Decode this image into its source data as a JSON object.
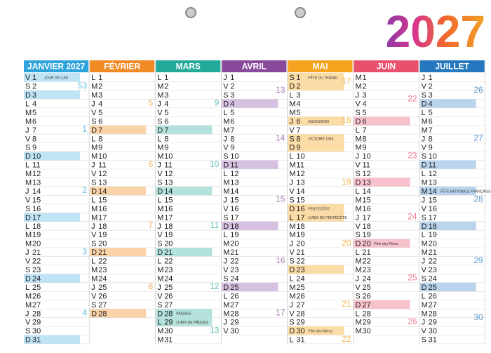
{
  "title": "2027",
  "months": [
    {
      "name": "JANVIER 2027",
      "color": "#2fa4dc",
      "light": "#bfe4f6",
      "letters": [
        "V",
        "S",
        "D",
        "L",
        "M",
        "M",
        "J",
        "V",
        "S",
        "D",
        "L",
        "M",
        "M",
        "J",
        "V",
        "S",
        "D",
        "L",
        "M",
        "M",
        "J",
        "V",
        "S",
        "D",
        "L",
        "M",
        "M",
        "J",
        "V",
        "S",
        "D"
      ],
      "days": [
        1,
        2,
        3,
        4,
        5,
        6,
        7,
        8,
        9,
        10,
        11,
        12,
        13,
        14,
        15,
        16,
        17,
        18,
        19,
        20,
        21,
        22,
        23,
        24,
        25,
        26,
        27,
        28,
        29,
        30,
        31
      ],
      "weeks": [
        53,
        1,
        2,
        3,
        4
      ],
      "events": [
        {
          "day": 1,
          "label": "JOUR DE L'AN"
        }
      ]
    },
    {
      "name": "FÉVRIER",
      "color": "#f18a24",
      "light": "#fbd3a8",
      "letters": [
        "L",
        "M",
        "M",
        "J",
        "V",
        "S",
        "D",
        "L",
        "M",
        "M",
        "J",
        "V",
        "S",
        "D",
        "L",
        "M",
        "M",
        "J",
        "V",
        "S",
        "D",
        "L",
        "M",
        "M",
        "J",
        "V",
        "S",
        "D"
      ],
      "days": [
        1,
        2,
        3,
        4,
        5,
        6,
        7,
        8,
        9,
        10,
        11,
        12,
        13,
        14,
        15,
        16,
        17,
        18,
        19,
        20,
        21,
        22,
        23,
        24,
        25,
        26,
        27,
        28
      ],
      "weeks": [
        5,
        6,
        7,
        8
      ],
      "events": []
    },
    {
      "name": "MARS",
      "color": "#22a99a",
      "light": "#b4e2dc",
      "letters": [
        "L",
        "M",
        "M",
        "J",
        "V",
        "S",
        "D",
        "L",
        "M",
        "M",
        "J",
        "V",
        "S",
        "D",
        "L",
        "M",
        "M",
        "J",
        "V",
        "S",
        "D",
        "L",
        "M",
        "M",
        "J",
        "V",
        "S",
        "D",
        "L",
        "M",
        "M"
      ],
      "days": [
        1,
        2,
        3,
        4,
        5,
        6,
        7,
        8,
        9,
        10,
        11,
        12,
        13,
        14,
        15,
        16,
        17,
        18,
        19,
        20,
        21,
        22,
        23,
        24,
        25,
        26,
        27,
        28,
        29,
        30,
        31
      ],
      "weeks": [
        9,
        10,
        11,
        12,
        13
      ],
      "events": [
        {
          "day": 28,
          "label": "PÂQUES"
        },
        {
          "day": 29,
          "label": "LUNDI DE PÂQUES"
        }
      ]
    },
    {
      "name": "AVRIL",
      "color": "#8a4a9c",
      "light": "#d7c1e0",
      "letters": [
        "J",
        "V",
        "S",
        "D",
        "L",
        "M",
        "M",
        "J",
        "V",
        "S",
        "D",
        "L",
        "M",
        "M",
        "J",
        "V",
        "S",
        "D",
        "L",
        "M",
        "M",
        "J",
        "V",
        "S",
        "D",
        "L",
        "M",
        "M",
        "J",
        "V"
      ],
      "days": [
        1,
        2,
        3,
        4,
        5,
        6,
        7,
        8,
        9,
        10,
        11,
        12,
        13,
        14,
        15,
        16,
        17,
        18,
        19,
        20,
        21,
        22,
        23,
        24,
        25,
        26,
        27,
        28,
        29,
        30
      ],
      "weeks": [
        13,
        14,
        15,
        16,
        17
      ],
      "events": []
    },
    {
      "name": "MAI",
      "color": "#f5a21e",
      "light": "#fcdca6",
      "letters": [
        "S",
        "D",
        "L",
        "M",
        "M",
        "J",
        "V",
        "S",
        "D",
        "L",
        "M",
        "M",
        "J",
        "V",
        "S",
        "D",
        "L",
        "M",
        "M",
        "J",
        "V",
        "S",
        "D",
        "L",
        "M",
        "M",
        "J",
        "V",
        "S",
        "D",
        "L"
      ],
      "days": [
        1,
        2,
        3,
        4,
        5,
        6,
        7,
        8,
        9,
        10,
        11,
        12,
        13,
        14,
        15,
        16,
        17,
        18,
        19,
        20,
        21,
        22,
        23,
        24,
        25,
        26,
        27,
        28,
        29,
        30,
        31
      ],
      "weeks": [
        17,
        18,
        19,
        20,
        21,
        22
      ],
      "events": [
        {
          "day": 1,
          "label": "FÊTE DU TRAVAIL"
        },
        {
          "day": 6,
          "label": "ASCENSION"
        },
        {
          "day": 8,
          "label": "VICTOIRE 1945"
        },
        {
          "day": 16,
          "label": "PENTECÔTE"
        },
        {
          "day": 17,
          "label": "LUNDI DE PENTECÔTE"
        },
        {
          "day": 30,
          "label": "Fête des Mères"
        }
      ]
    },
    {
      "name": "JUIN",
      "color": "#e8506e",
      "light": "#f8c2cd",
      "letters": [
        "M",
        "M",
        "J",
        "V",
        "S",
        "D",
        "L",
        "M",
        "M",
        "J",
        "V",
        "S",
        "D",
        "L",
        "M",
        "M",
        "J",
        "V",
        "S",
        "D",
        "L",
        "M",
        "M",
        "J",
        "V",
        "S",
        "D",
        "L",
        "M",
        "M"
      ],
      "days": [
        1,
        2,
        3,
        4,
        5,
        6,
        7,
        8,
        9,
        10,
        11,
        12,
        13,
        14,
        15,
        16,
        17,
        18,
        19,
        20,
        21,
        22,
        23,
        24,
        25,
        26,
        27,
        28,
        29,
        30
      ],
      "weeks": [
        22,
        23,
        24,
        25,
        26
      ],
      "events": [
        {
          "day": 20,
          "label": "Fête des Pères"
        }
      ]
    },
    {
      "name": "JUILLET",
      "color": "#2578bd",
      "light": "#b9d4ec",
      "letters": [
        "J",
        "V",
        "S",
        "D",
        "L",
        "M",
        "M",
        "J",
        "V",
        "S",
        "D",
        "L",
        "M",
        "M",
        "J",
        "V",
        "S",
        "D",
        "L",
        "M",
        "M",
        "J",
        "V",
        "S",
        "D",
        "L",
        "M",
        "M",
        "J",
        "V",
        "S"
      ],
      "days": [
        1,
        2,
        3,
        4,
        5,
        6,
        7,
        8,
        9,
        10,
        11,
        12,
        13,
        14,
        15,
        16,
        17,
        18,
        19,
        20,
        21,
        22,
        23,
        24,
        25,
        26,
        27,
        28,
        29,
        30,
        31
      ],
      "weeks": [
        26,
        27,
        28,
        29,
        30
      ],
      "events": [
        {
          "day": 14,
          "label": "FÊTE NATIONALE FRANÇAISE"
        }
      ]
    }
  ]
}
